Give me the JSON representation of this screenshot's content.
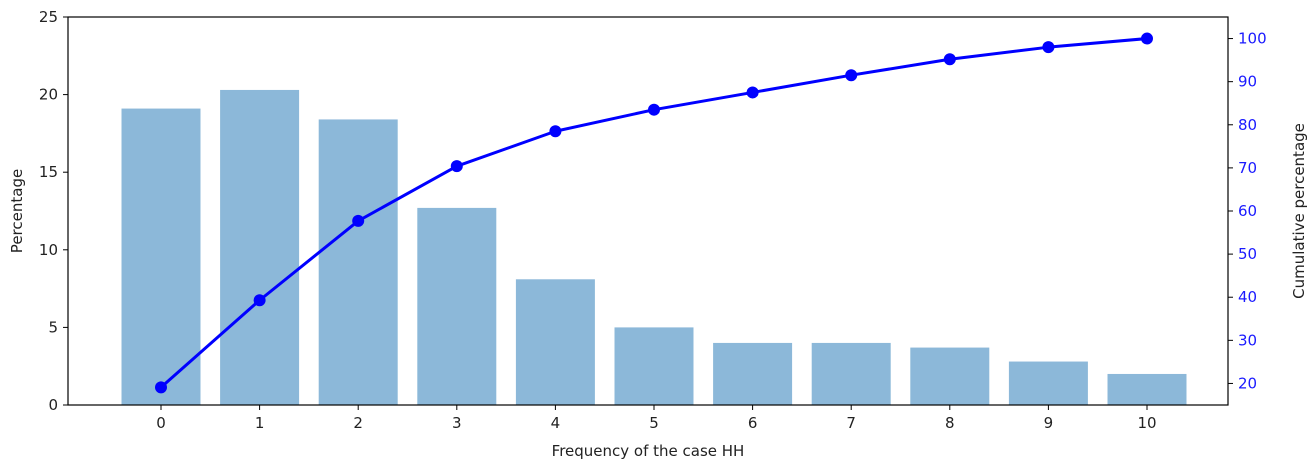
{
  "chart_data": {
    "type": "bar+line",
    "title": "",
    "xlabel": "Frequency of the case HH",
    "ylabel": "Percentage",
    "y2label": "Cumulative percentage",
    "categories": [
      "0",
      "1",
      "2",
      "3",
      "4",
      "5",
      "6",
      "7",
      "8",
      "9",
      "10"
    ],
    "ylim": [
      0,
      25
    ],
    "y2lim": [
      15,
      105
    ],
    "yticks": [
      0,
      5,
      10,
      15,
      20,
      25
    ],
    "y2ticks": [
      20,
      30,
      40,
      50,
      60,
      70,
      80,
      90,
      100
    ],
    "series": [
      {
        "kind": "bar",
        "axis": "left",
        "color": "#8cb8d9",
        "values": [
          19.1,
          20.3,
          18.4,
          12.7,
          8.1,
          5.0,
          4.0,
          4.0,
          3.7,
          2.8,
          2.0
        ]
      },
      {
        "kind": "line",
        "axis": "right",
        "color": "#0000ff",
        "values": [
          19.1,
          39.3,
          57.7,
          70.4,
          78.5,
          83.5,
          87.5,
          91.5,
          95.2,
          98.0,
          100.0
        ]
      }
    ],
    "grid": false,
    "legend": "none",
    "colors": {
      "axis": "#000000",
      "right_axis_text": "#1a1aff",
      "text": "#222222"
    }
  }
}
